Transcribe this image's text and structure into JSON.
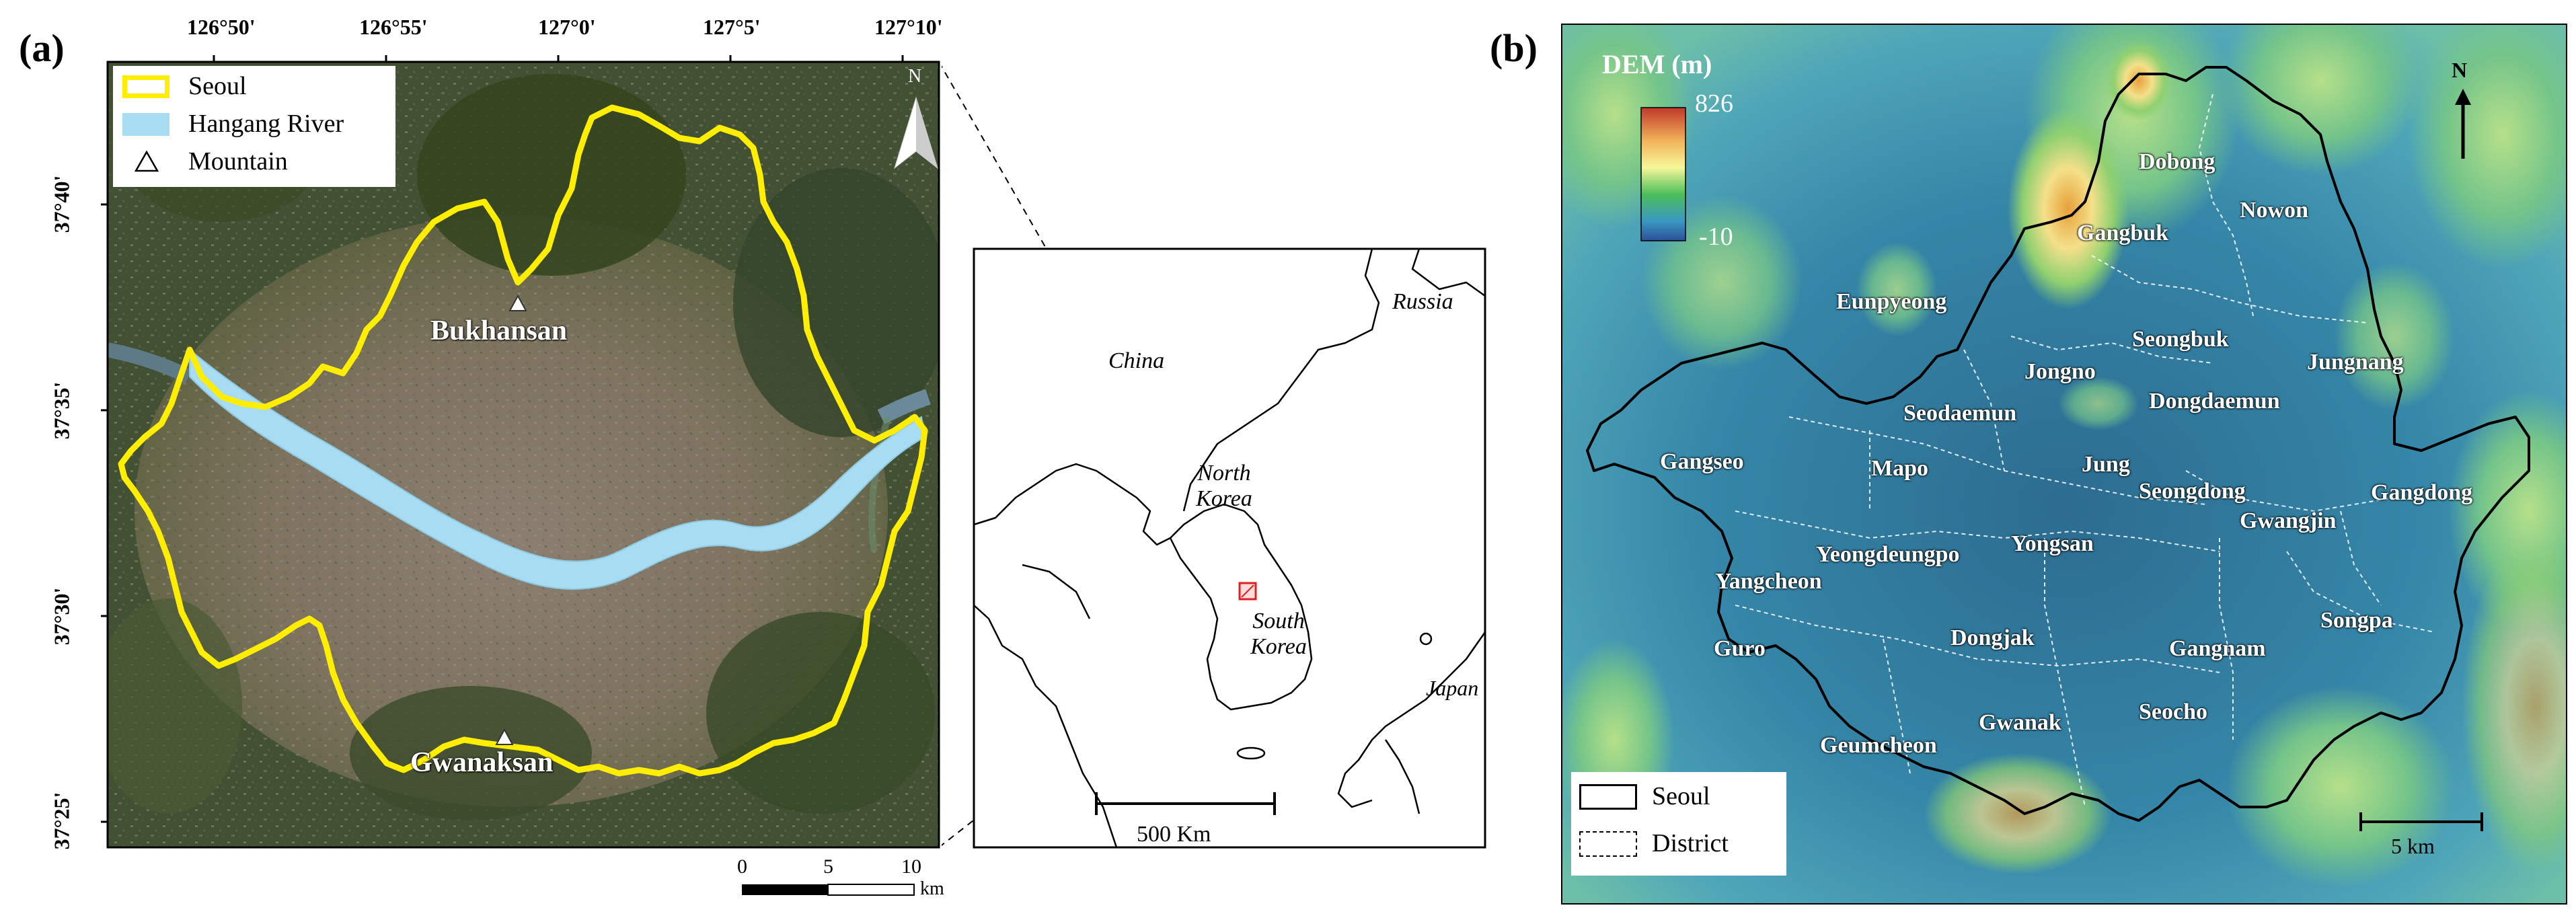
{
  "panel_a": {
    "letter": "(a)",
    "lon_ticks": [
      "126°50'",
      "126°55'",
      "127°0'",
      "127°5'",
      "127°10'"
    ],
    "lat_ticks": [
      "37°40'",
      "37°35'",
      "37°30'",
      "37°25'"
    ],
    "legend": [
      {
        "label": "Seoul",
        "symbol": "seoul-box",
        "color": "#ffee00"
      },
      {
        "label": "Hangang River",
        "symbol": "river-box",
        "color": "#a8dcf2"
      },
      {
        "label": "Mountain",
        "symbol": "triangle",
        "color": "#ffffff"
      }
    ],
    "north": "N",
    "mountains": [
      "Bukhansan",
      "Gwanaksan"
    ],
    "scale": {
      "ticks": [
        "0",
        "5",
        "10"
      ],
      "unit": "km"
    }
  },
  "inset": {
    "labels": [
      "Russia",
      "China",
      "North Korea",
      "South Korea",
      "Japan"
    ],
    "scale": "500 Km",
    "highlight_color": "#e02020"
  },
  "panel_b": {
    "letter": "(b)",
    "dem_title": "DEM (m)",
    "dem_max": "826",
    "dem_min": "-10",
    "north": "N",
    "districts": [
      "Dobong",
      "Nowon",
      "Gangbuk",
      "Eunpyeong",
      "Seongbuk",
      "Jungnang",
      "Jongno",
      "Dongdaemun",
      "Seodaemun",
      "Gangseo",
      "Mapo",
      "Jung",
      "Seongdong",
      "Gangdong",
      "Gwangjin",
      "Yeongdeungpo",
      "Yongsan",
      "Yangcheon",
      "Songpa",
      "Guro",
      "Dongjak",
      "Gangnam",
      "Gwanak",
      "Seocho",
      "Geumcheon"
    ],
    "legend": [
      {
        "label": "Seoul",
        "symbol": "solid-box"
      },
      {
        "label": "District",
        "symbol": "dashed-box"
      }
    ],
    "scale": "5 km"
  }
}
